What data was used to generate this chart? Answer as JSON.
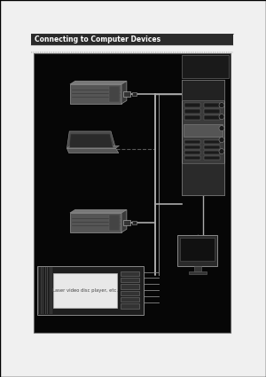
{
  "bg_color": "#000000",
  "page_bg": "#f0f0f0",
  "page_border": "#000000",
  "header_bar_color": "#2a2a2a",
  "header_text": "Connecting to Computer Devices",
  "header_text_color": "#ffffff",
  "header_fontsize": 5.5,
  "diagram_bg": "#000000",
  "diagram_border": "#555555",
  "note_text": "Laser video disc player, etc.",
  "note_fontsize": 3.8,
  "device_color": "#555555",
  "device_edge": "#888888",
  "device_top": "#777777",
  "device_right": "#3a3a3a",
  "cable_color": "#aaaaaa",
  "panel_color": "#3a3a3a",
  "panel_edge": "#888888",
  "monitor_color": "#222222",
  "lvd_bg": "#1e1e1e",
  "lvd_inner": "#e8e8e8",
  "lvd_inner_text": "#444444"
}
